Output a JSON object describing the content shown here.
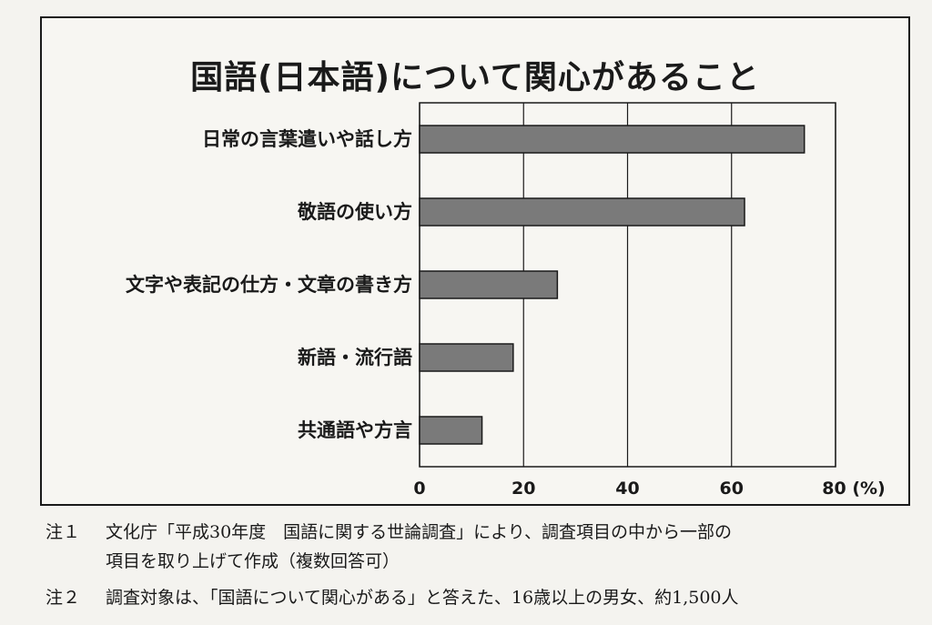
{
  "title": "国語(日本語)について関心があること",
  "chart_data": {
    "type": "bar",
    "orientation": "horizontal",
    "categories": [
      "日常の言葉遣いや話し方",
      "敬語の使い方",
      "文字や表記の仕方・文章の書き方",
      "新語・流行語",
      "共通語や方言"
    ],
    "values": [
      74,
      62.5,
      26.5,
      18,
      12
    ],
    "xlim": [
      0,
      80
    ],
    "x_ticks": [
      "0",
      "20",
      "40",
      "60",
      "80"
    ],
    "x_unit": "(%)",
    "grid": true,
    "bar_color": "#7a7a7a"
  },
  "notes": [
    {
      "tag": "注１",
      "lines": [
        "文化庁「平成30年度　国語に関する世論調査」により、調査項目の中から一部の",
        "項目を取り上げて作成（複数回答可）"
      ]
    },
    {
      "tag": "注２",
      "lines": [
        "調査対象は、「国語について関心がある」と答えた、16歳以上の男女、約1,500人"
      ]
    }
  ]
}
